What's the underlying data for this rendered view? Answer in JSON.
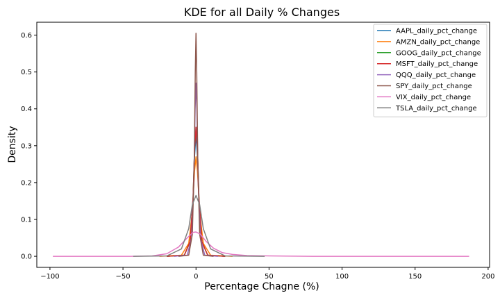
{
  "chart_data": {
    "type": "line",
    "title": "KDE for all Daily % Changes",
    "xlabel": "Percentage Chagne (%)",
    "ylabel": "Density",
    "xlim": [
      -109,
      201
    ],
    "ylim": [
      -0.03,
      0.635
    ],
    "xticks": [
      -100,
      -50,
      0,
      50,
      100,
      150,
      200
    ],
    "xtick_labels": [
      "−100",
      "−50",
      "0",
      "50",
      "100",
      "150",
      "200"
    ],
    "yticks": [
      0.0,
      0.1,
      0.2,
      0.3,
      0.4,
      0.5,
      0.6
    ],
    "ytick_labels": [
      "0.0",
      "0.1",
      "0.2",
      "0.3",
      "0.4",
      "0.5",
      "0.6"
    ],
    "grid": false,
    "legend_position": "top-right",
    "series": [
      {
        "name": "AAPL_daily_pct_change",
        "color": "#1f77b4",
        "x": [
          -20,
          -8,
          -4,
          -2,
          -1,
          0,
          1,
          2,
          4,
          8,
          20
        ],
        "values": [
          0.0,
          0.003,
          0.04,
          0.15,
          0.27,
          0.33,
          0.27,
          0.15,
          0.04,
          0.003,
          0.0
        ]
      },
      {
        "name": "AMZN_daily_pct_change",
        "color": "#ff7f0e",
        "x": [
          -25,
          -10,
          -5,
          -2.5,
          -1,
          0,
          1,
          2.5,
          5,
          10,
          25
        ],
        "values": [
          0.0,
          0.003,
          0.035,
          0.12,
          0.23,
          0.27,
          0.23,
          0.12,
          0.035,
          0.003,
          0.0
        ]
      },
      {
        "name": "GOOG_daily_pct_change",
        "color": "#2ca02c",
        "x": [
          -20,
          -8,
          -4,
          -2,
          -1,
          0,
          1,
          2,
          4,
          8,
          20
        ],
        "values": [
          0.0,
          0.003,
          0.04,
          0.16,
          0.29,
          0.35,
          0.29,
          0.16,
          0.04,
          0.003,
          0.0
        ]
      },
      {
        "name": "MSFT_daily_pct_change",
        "color": "#d62728",
        "x": [
          -20,
          -8,
          -4,
          -2,
          -1,
          0,
          1,
          2,
          4,
          8,
          20
        ],
        "values": [
          0.0,
          0.003,
          0.04,
          0.16,
          0.29,
          0.35,
          0.29,
          0.16,
          0.04,
          0.003,
          0.0
        ]
      },
      {
        "name": "QQQ_daily_pct_change",
        "color": "#9467bd",
        "x": [
          -15,
          -6,
          -3,
          -1.5,
          -0.6,
          0,
          0.6,
          1.5,
          3,
          6,
          15
        ],
        "values": [
          0.0,
          0.003,
          0.05,
          0.2,
          0.4,
          0.47,
          0.4,
          0.2,
          0.05,
          0.003,
          0.0
        ]
      },
      {
        "name": "SPY_daily_pct_change",
        "color": "#8c564b",
        "x": [
          -12,
          -5,
          -2.5,
          -1.2,
          -0.5,
          0,
          0.5,
          1.2,
          2.5,
          5,
          12
        ],
        "values": [
          0.0,
          0.003,
          0.06,
          0.26,
          0.5,
          0.605,
          0.5,
          0.26,
          0.06,
          0.003,
          0.0
        ]
      },
      {
        "name": "VIX_daily_pct_change",
        "color": "#e377c2",
        "x": [
          -98,
          -45,
          -30,
          -20,
          -12,
          -6,
          -2,
          0,
          3,
          7,
          12,
          18,
          25,
          35,
          50,
          80,
          120,
          187
        ],
        "values": [
          0.0,
          0.0,
          0.001,
          0.007,
          0.025,
          0.05,
          0.065,
          0.066,
          0.06,
          0.04,
          0.022,
          0.01,
          0.005,
          0.002,
          0.001,
          0.0,
          0.0,
          0.0
        ]
      },
      {
        "name": "TSLA_daily_pct_change",
        "color": "#7f7f7f",
        "x": [
          -43,
          -20,
          -10,
          -5,
          -2.5,
          0,
          2.5,
          5,
          10,
          20,
          47
        ],
        "values": [
          0.0,
          0.001,
          0.02,
          0.075,
          0.14,
          0.165,
          0.14,
          0.075,
          0.02,
          0.001,
          0.0
        ]
      }
    ]
  }
}
